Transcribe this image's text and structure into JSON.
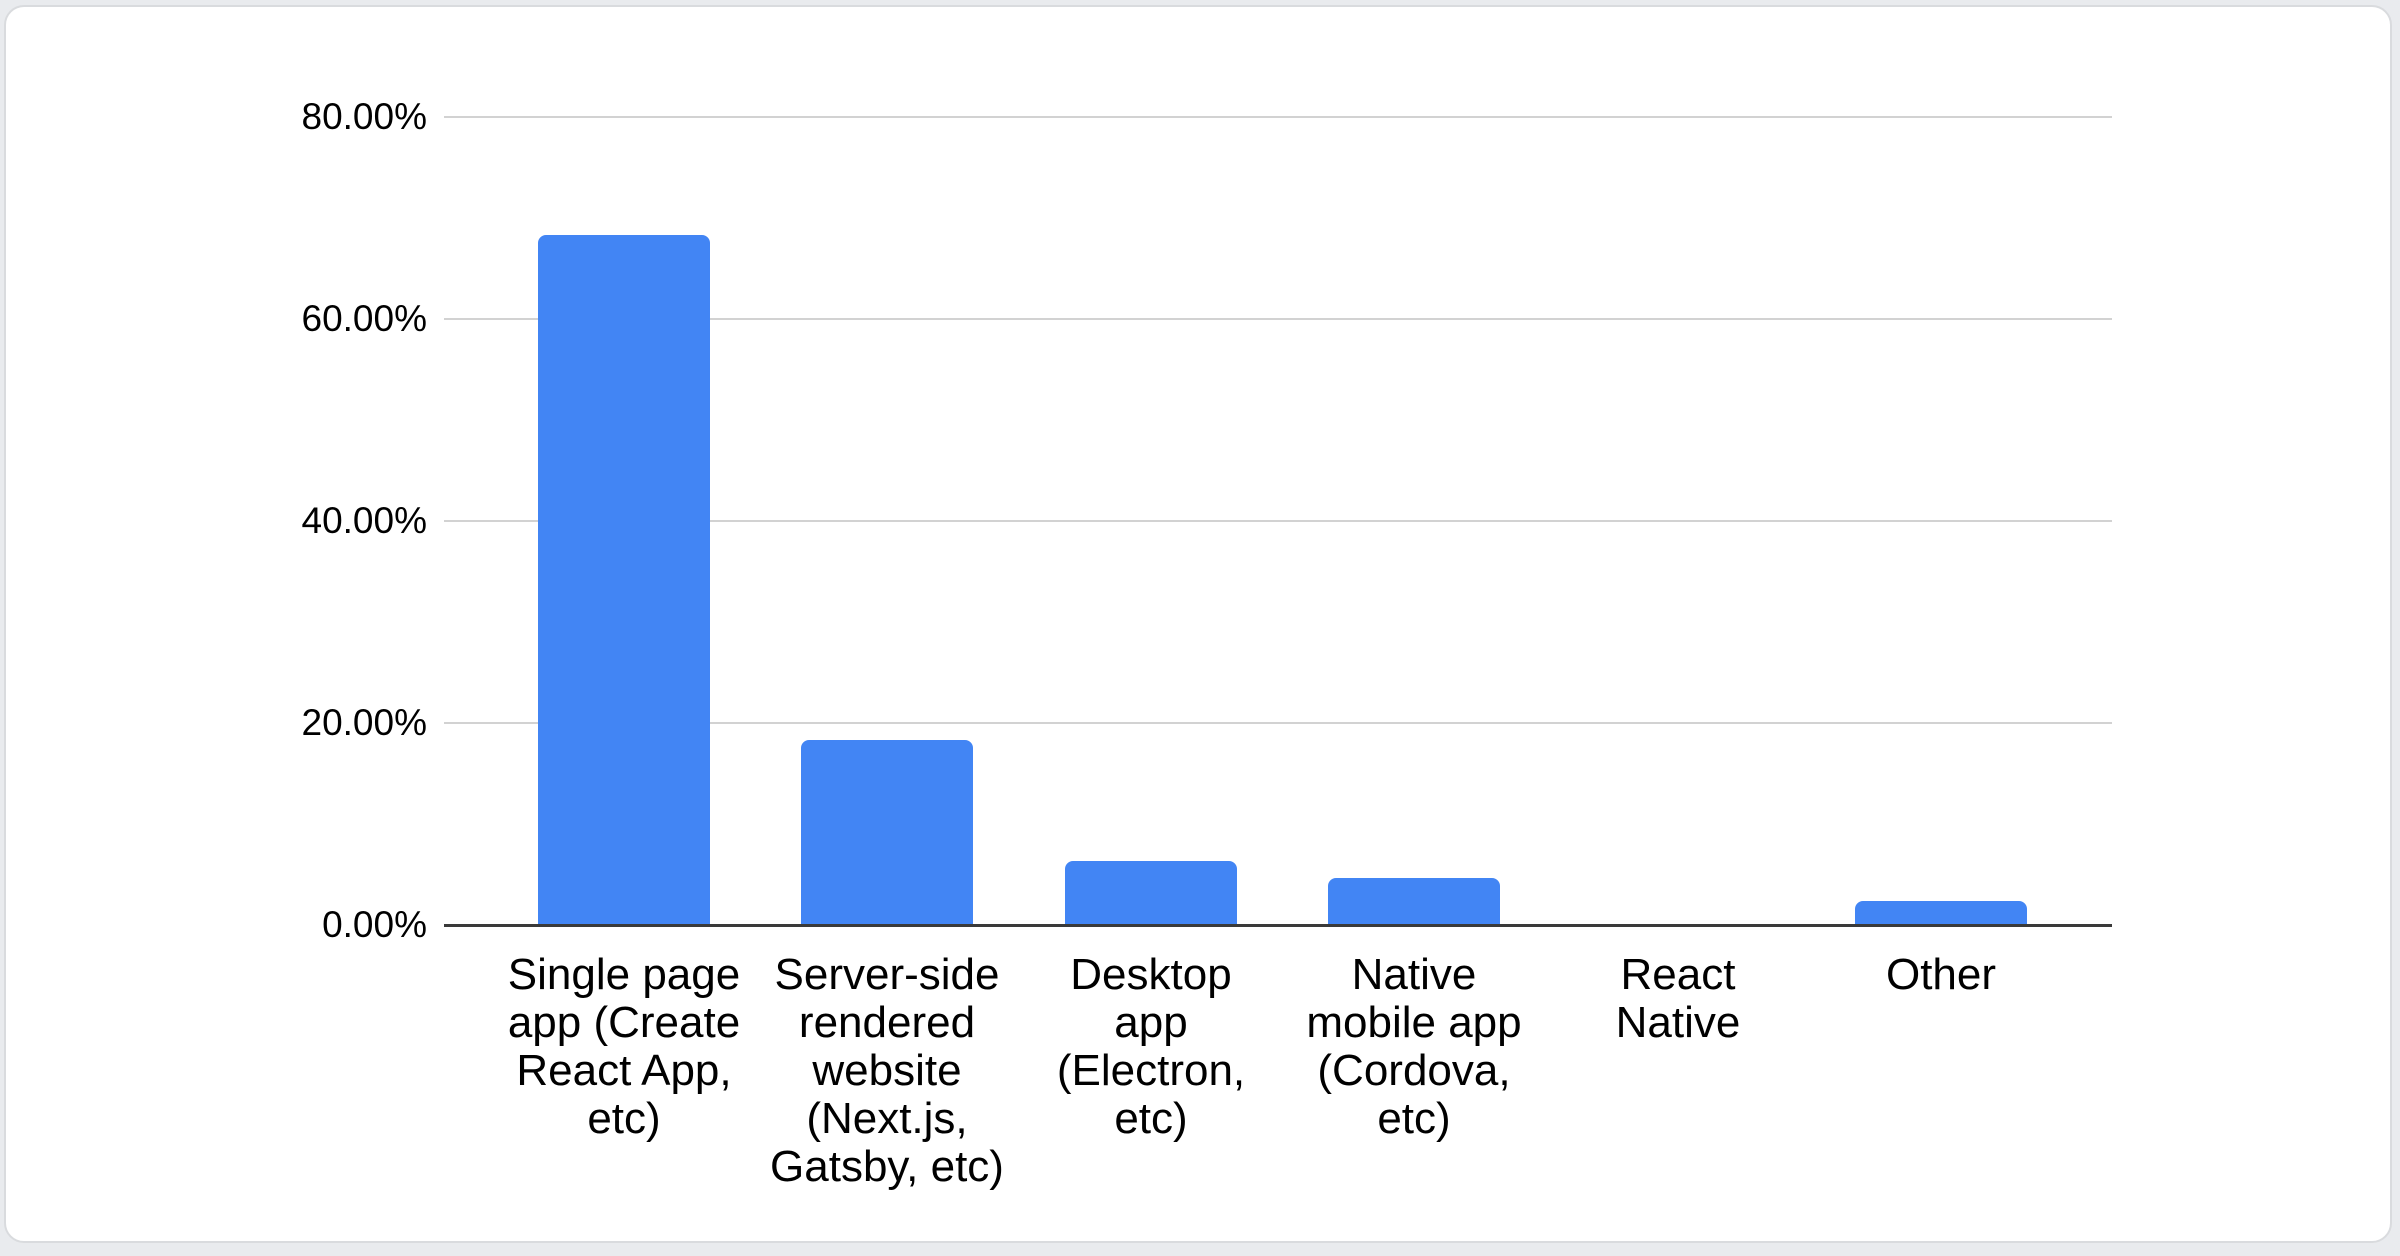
{
  "page": {
    "background_color": "#e9ebee"
  },
  "card": {
    "background_color": "#ffffff",
    "border_color": "#d9dbde"
  },
  "chart_data": {
    "type": "bar",
    "title": "",
    "xlabel": "",
    "ylabel": "",
    "unit": "%",
    "categories": [
      "Single page app (Create React App, etc)",
      "Server-side rendered website (Next.js, Gatsby, etc)",
      "Desktop app (Electron, etc)",
      "Native mobile app (Cordova, etc)",
      "React Native",
      "Other"
    ],
    "category_label_lines": [
      [
        "Single page",
        "app (Create",
        "React App,",
        "etc)"
      ],
      [
        "Server-side",
        "rendered",
        "website",
        "(Next.js,",
        "Gatsby, etc)"
      ],
      [
        "Desktop",
        "app",
        "(Electron,",
        "etc)"
      ],
      [
        "Native",
        "mobile app",
        "(Cordova,",
        "etc)"
      ],
      [
        "React",
        "Native"
      ],
      [
        "Other"
      ]
    ],
    "values": [
      68.3,
      18.3,
      6.3,
      4.7,
      0,
      2.4
    ],
    "ylim": [
      0,
      80
    ],
    "yticks": [
      {
        "value": 0,
        "label": "0.00%"
      },
      {
        "value": 20,
        "label": "20.00%"
      },
      {
        "value": 40,
        "label": "40.00%"
      },
      {
        "value": 60,
        "label": "60.00%"
      },
      {
        "value": 80,
        "label": "80.00%"
      }
    ],
    "grid": true,
    "legend_position": "none",
    "colors": {
      "bar": "#4285f4",
      "gridline": "#d2d2d2",
      "axis": "#3a3a3a",
      "text": "#000000"
    }
  }
}
